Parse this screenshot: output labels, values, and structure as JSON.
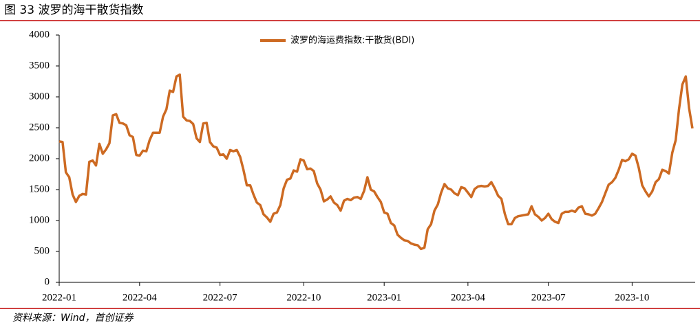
{
  "chart_data": {
    "type": "line",
    "title": "图 33 波罗的海干散货指数",
    "source": "资料来源：Wind，首创证券",
    "categories": [
      "2022-01",
      null,
      null,
      null,
      null,
      null,
      null,
      null,
      null,
      null,
      null,
      null,
      null,
      null,
      null,
      null,
      null,
      null,
      null,
      null,
      null,
      null,
      null,
      null,
      "2022-04",
      null,
      null,
      null,
      null,
      null,
      null,
      null,
      null,
      null,
      null,
      null,
      null,
      null,
      null,
      null,
      null,
      null,
      null,
      null,
      null,
      null,
      null,
      null,
      "2022-07",
      null,
      null,
      null,
      null,
      null,
      null,
      null,
      null,
      null,
      null,
      null,
      null,
      null,
      null,
      null,
      null,
      null,
      null,
      null,
      null,
      null,
      null,
      null,
      null,
      "2022-10",
      null,
      null,
      null,
      null,
      null,
      null,
      null,
      null,
      null,
      null,
      null,
      null,
      null,
      null,
      null,
      null,
      null,
      null,
      null,
      null,
      null,
      null,
      null,
      "2023-01",
      null,
      null,
      null,
      null,
      null,
      null,
      null,
      null,
      null,
      null,
      null,
      null,
      null,
      null,
      null,
      null,
      null,
      null,
      null,
      null,
      null,
      null,
      null,
      null,
      "2023-04",
      null,
      null,
      null,
      null,
      null,
      null,
      null,
      null,
      null,
      null,
      null,
      null,
      null,
      null,
      null,
      null,
      null,
      null,
      null,
      null,
      null,
      null,
      null,
      "2023-07",
      null,
      null,
      null,
      null,
      null,
      null,
      null,
      null,
      null,
      null,
      null,
      null,
      null,
      null,
      null,
      null,
      null,
      null,
      null,
      null,
      null,
      null,
      null,
      null,
      "2023-10",
      null,
      null,
      null,
      null,
      null,
      null,
      null,
      null,
      null,
      null,
      null,
      null,
      null,
      null,
      null,
      null,
      null,
      null
    ],
    "series": [
      {
        "name": "波罗的海运费指数:干散货(BDI)",
        "color": "#cd6a22",
        "values": [
          2280,
          2270,
          1780,
          1700,
          1420,
          1300,
          1400,
          1430,
          1420,
          1950,
          1970,
          1890,
          2240,
          2080,
          2150,
          2250,
          2700,
          2720,
          2580,
          2570,
          2540,
          2380,
          2350,
          2060,
          2050,
          2130,
          2120,
          2300,
          2420,
          2420,
          2420,
          2680,
          2800,
          3100,
          3080,
          3330,
          3360,
          2680,
          2620,
          2610,
          2560,
          2330,
          2270,
          2570,
          2580,
          2270,
          2200,
          2180,
          2060,
          2070,
          2000,
          2140,
          2120,
          2140,
          2030,
          1820,
          1570,
          1570,
          1420,
          1290,
          1250,
          1100,
          1050,
          980,
          1110,
          1130,
          1250,
          1520,
          1660,
          1680,
          1810,
          1790,
          1990,
          1970,
          1830,
          1840,
          1800,
          1600,
          1500,
          1310,
          1340,
          1390,
          1290,
          1250,
          1160,
          1320,
          1350,
          1330,
          1370,
          1380,
          1350,
          1480,
          1700,
          1500,
          1470,
          1380,
          1300,
          1130,
          1110,
          960,
          920,
          770,
          720,
          680,
          670,
          630,
          610,
          600,
          540,
          560,
          860,
          940,
          1160,
          1260,
          1450,
          1590,
          1520,
          1500,
          1440,
          1410,
          1540,
          1520,
          1450,
          1380,
          1510,
          1550,
          1560,
          1550,
          1560,
          1620,
          1520,
          1400,
          1350,
          1110,
          940,
          940,
          1040,
          1070,
          1080,
          1090,
          1100,
          1230,
          1100,
          1060,
          1000,
          1040,
          1110,
          1020,
          980,
          960,
          1110,
          1140,
          1140,
          1160,
          1140,
          1210,
          1230,
          1110,
          1100,
          1080,
          1110,
          1200,
          1300,
          1440,
          1580,
          1620,
          1690,
          1820,
          1980,
          1960,
          1990,
          2080,
          2050,
          1850,
          1570,
          1470,
          1390,
          1470,
          1620,
          1670,
          1820,
          1800,
          1760,
          2100,
          2300,
          2800,
          3200,
          3330,
          2820,
          2490
        ]
      }
    ],
    "ylim": [
      0,
      4000
    ],
    "yticks": [
      0,
      500,
      1000,
      1500,
      2000,
      2500,
      3000,
      3500,
      4000
    ],
    "legend": "top"
  }
}
